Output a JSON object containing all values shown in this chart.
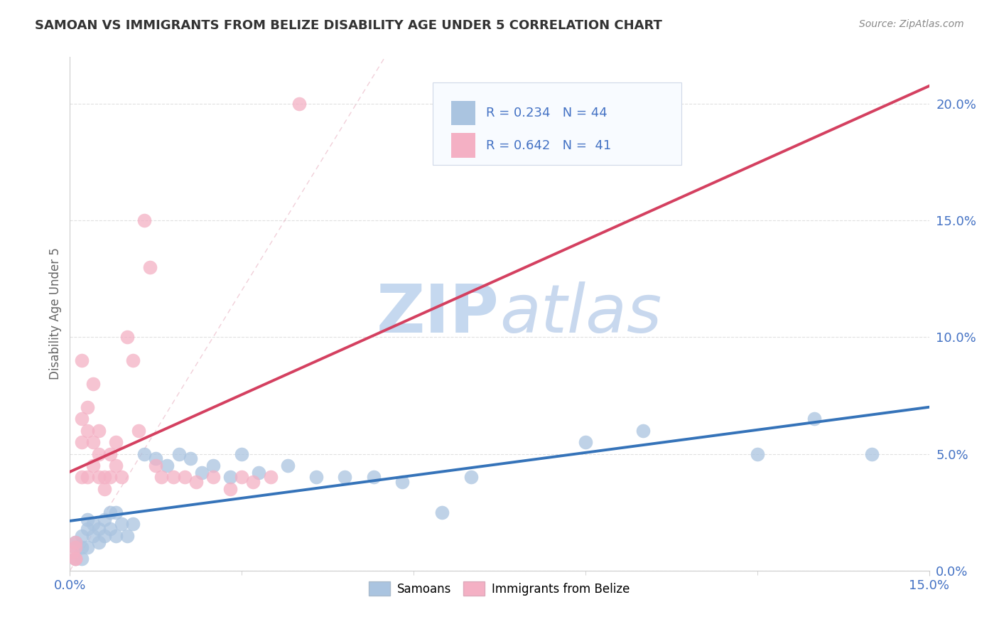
{
  "title": "SAMOAN VS IMMIGRANTS FROM BELIZE DISABILITY AGE UNDER 5 CORRELATION CHART",
  "source": "Source: ZipAtlas.com",
  "ylabel": "Disability Age Under 5",
  "xlim": [
    0.0,
    0.15
  ],
  "ylim": [
    0.0,
    0.22
  ],
  "samoans_R": 0.234,
  "samoans_N": 44,
  "belize_R": 0.642,
  "belize_N": 41,
  "samoans_color": "#aac4e0",
  "belize_color": "#f4b0c4",
  "trend_blue": "#3573b9",
  "trend_pink": "#d44060",
  "ref_line_color": "#cccccc",
  "legend_text_color": "#4472c4",
  "watermark_zip_color": "#c8d8ee",
  "watermark_atlas_color": "#c8d8ee",
  "background_color": "#ffffff",
  "grid_color": "#e0e0e0",
  "samoans_x": [
    0.001,
    0.001,
    0.001,
    0.002,
    0.002,
    0.002,
    0.003,
    0.003,
    0.003,
    0.004,
    0.004,
    0.005,
    0.005,
    0.006,
    0.006,
    0.007,
    0.007,
    0.008,
    0.008,
    0.009,
    0.01,
    0.011,
    0.013,
    0.015,
    0.017,
    0.019,
    0.021,
    0.023,
    0.025,
    0.028,
    0.03,
    0.033,
    0.038,
    0.043,
    0.048,
    0.053,
    0.058,
    0.065,
    0.07,
    0.09,
    0.1,
    0.12,
    0.13,
    0.14
  ],
  "samoans_y": [
    0.005,
    0.01,
    0.012,
    0.005,
    0.01,
    0.015,
    0.01,
    0.018,
    0.022,
    0.015,
    0.02,
    0.012,
    0.018,
    0.015,
    0.022,
    0.018,
    0.025,
    0.015,
    0.025,
    0.02,
    0.015,
    0.02,
    0.05,
    0.048,
    0.045,
    0.05,
    0.048,
    0.042,
    0.045,
    0.04,
    0.05,
    0.042,
    0.045,
    0.04,
    0.04,
    0.04,
    0.038,
    0.025,
    0.04,
    0.055,
    0.06,
    0.05,
    0.065,
    0.05
  ],
  "belize_x": [
    0.0005,
    0.001,
    0.001,
    0.001,
    0.001,
    0.002,
    0.002,
    0.002,
    0.002,
    0.003,
    0.003,
    0.003,
    0.004,
    0.004,
    0.004,
    0.005,
    0.005,
    0.005,
    0.006,
    0.006,
    0.007,
    0.007,
    0.008,
    0.008,
    0.009,
    0.01,
    0.011,
    0.012,
    0.013,
    0.014,
    0.015,
    0.016,
    0.018,
    0.02,
    0.022,
    0.025,
    0.028,
    0.03,
    0.032,
    0.035,
    0.04
  ],
  "belize_y": [
    0.008,
    0.005,
    0.01,
    0.012,
    0.005,
    0.04,
    0.055,
    0.065,
    0.09,
    0.04,
    0.06,
    0.07,
    0.045,
    0.055,
    0.08,
    0.04,
    0.05,
    0.06,
    0.035,
    0.04,
    0.04,
    0.05,
    0.045,
    0.055,
    0.04,
    0.1,
    0.09,
    0.06,
    0.15,
    0.13,
    0.045,
    0.04,
    0.04,
    0.04,
    0.038,
    0.04,
    0.035,
    0.04,
    0.038,
    0.04,
    0.2
  ],
  "y_ticks": [
    0.0,
    0.05,
    0.1,
    0.15,
    0.2
  ],
  "y_tick_labels": [
    "0.0%",
    "5.0%",
    "10.0%",
    "15.0%",
    "20.0%"
  ]
}
